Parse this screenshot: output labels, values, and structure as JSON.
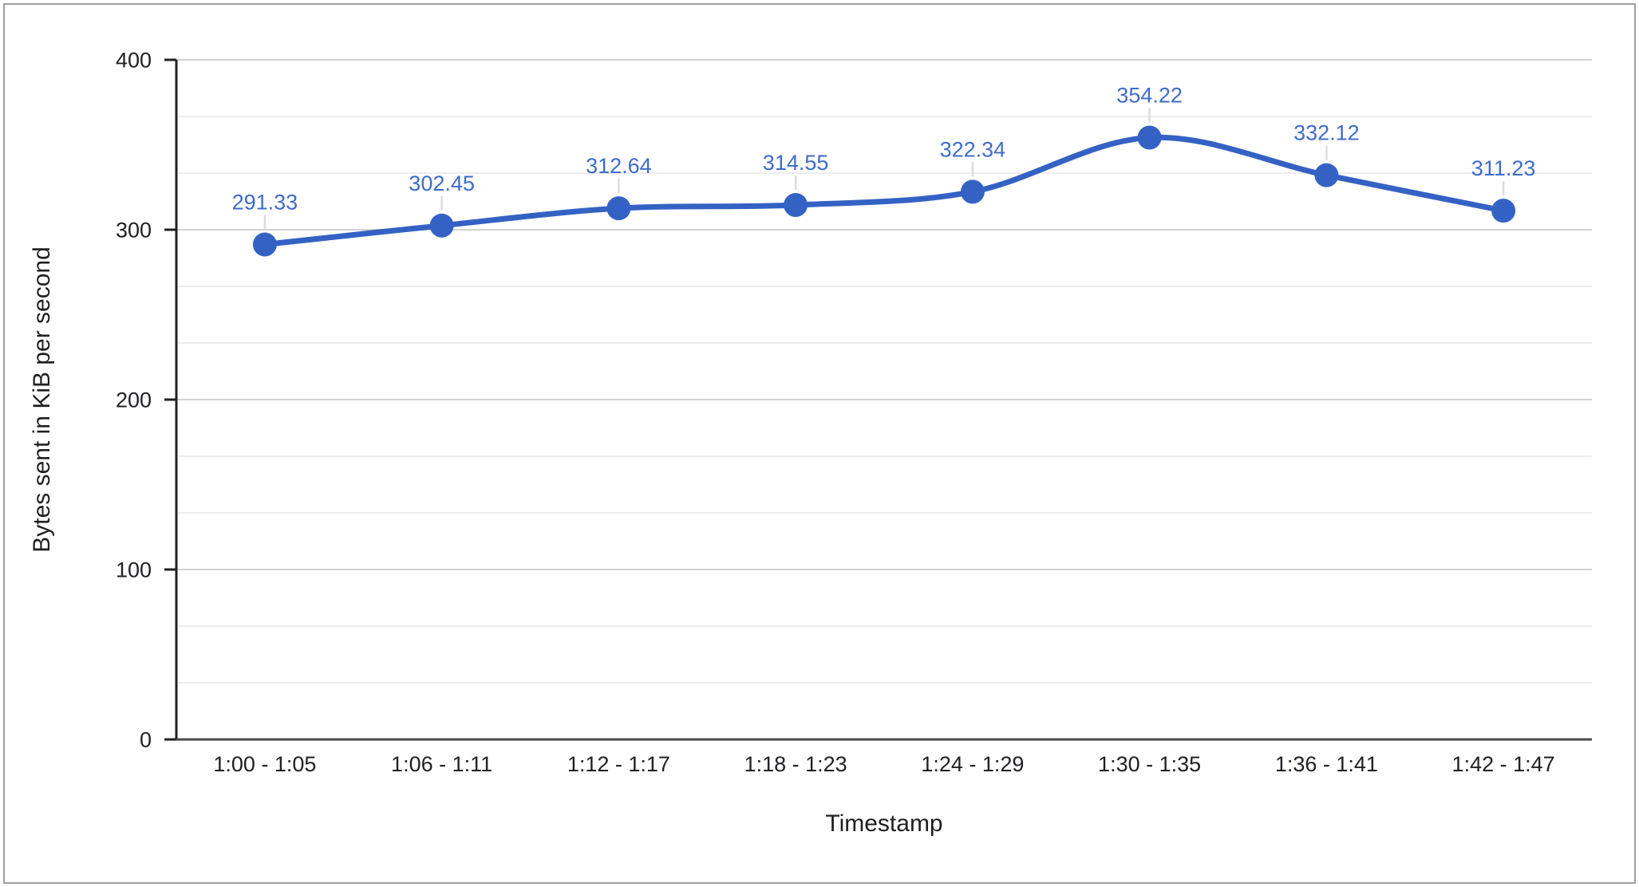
{
  "chart_data": {
    "type": "line",
    "title": "",
    "categories": [
      "1:00 - 1:05",
      "1:06 - 1:11",
      "1:12 - 1:17",
      "1:18 - 1:23",
      "1:24 - 1:29",
      "1:30 - 1:35",
      "1:36 - 1:41",
      "1:42 - 1:47"
    ],
    "values": [
      291.33,
      302.45,
      312.64,
      314.55,
      322.34,
      354.22,
      332.12,
      311.23
    ],
    "data_labels": [
      "291.33",
      "302.45",
      "312.64",
      "314.55",
      "322.34",
      "354.22",
      "332.12",
      "311.23"
    ],
    "xlabel": "Timestamp",
    "ylabel": "Bytes sent in KiB per second",
    "ylim": [
      0,
      400
    ],
    "y_major_ticks": [
      0,
      100,
      200,
      300,
      400
    ],
    "minor_gridlines_per_major": 3,
    "grid": true,
    "legend": "none",
    "smooth": true,
    "point_markers": true,
    "colors": {
      "line": "#3462c4",
      "marker": "#3462c4",
      "data_label": "#3e6cc9",
      "axis_text": "#202124",
      "axis_title_text": "#1f1f1f",
      "major_grid": "#d2d2d2",
      "minor_grid": "#ededed",
      "y_axis_line": "#212121",
      "baseline": "#4a4a4a",
      "leader_line": "#dcdcdc",
      "frame_border": "#9e9e9e",
      "background": "#ffffff"
    }
  }
}
